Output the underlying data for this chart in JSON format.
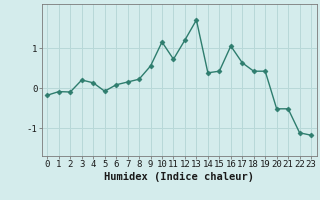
{
  "x": [
    0,
    1,
    2,
    3,
    4,
    5,
    6,
    7,
    8,
    9,
    10,
    11,
    12,
    13,
    14,
    15,
    16,
    17,
    18,
    19,
    20,
    21,
    22,
    23
  ],
  "y": [
    -0.18,
    -0.09,
    -0.1,
    0.2,
    0.13,
    -0.08,
    0.08,
    0.15,
    0.22,
    0.55,
    1.15,
    0.72,
    1.2,
    1.7,
    0.38,
    0.42,
    1.05,
    0.63,
    0.42,
    0.42,
    -0.52,
    -0.52,
    -1.12,
    -1.18
  ],
  "line_color": "#2e7d6e",
  "marker": "D",
  "marker_size": 2.5,
  "bg_color": "#d4ecec",
  "grid_color": "#b8d8d8",
  "xlabel": "Humidex (Indice chaleur)",
  "xlim": [
    -0.5,
    23.5
  ],
  "ylim": [
    -1.7,
    2.1
  ],
  "yticks": [
    -1,
    0,
    1
  ],
  "xticks": [
    0,
    1,
    2,
    3,
    4,
    5,
    6,
    7,
    8,
    9,
    10,
    11,
    12,
    13,
    14,
    15,
    16,
    17,
    18,
    19,
    20,
    21,
    22,
    23
  ],
  "xlabel_fontsize": 7.5,
  "tick_fontsize": 6.5,
  "line_width": 1.0,
  "spine_color": "#7a7a7a"
}
